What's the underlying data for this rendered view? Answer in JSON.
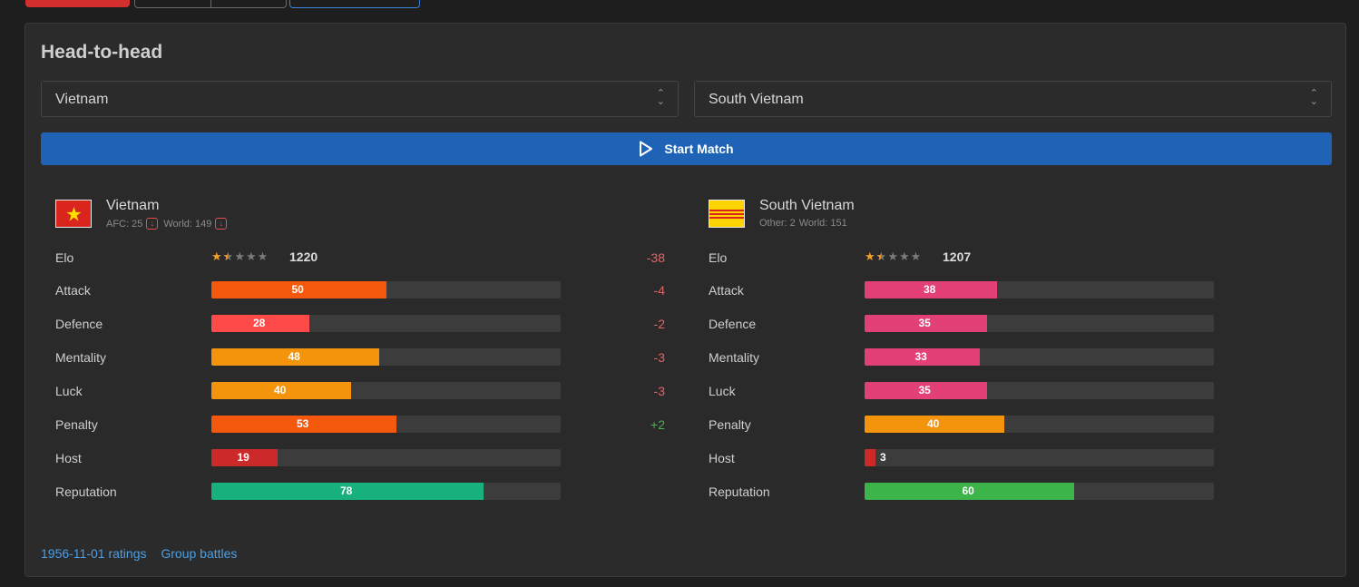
{
  "section_title": "Head-to-head",
  "select_left": {
    "value": "Vietnam"
  },
  "select_right": {
    "value": "South Vietnam"
  },
  "start_button": {
    "label": "Start Match"
  },
  "teams": [
    {
      "name": "Vietnam",
      "flag": "vietnam-flag",
      "sub_a": "AFC: 25",
      "sub_b": "World: 149",
      "elo": {
        "label": "Elo",
        "value": "1220",
        "delta": "-38",
        "stars": 1.5
      },
      "stats": [
        {
          "label": "Attack",
          "value": 50,
          "color": "#f4580c",
          "delta": "-4",
          "sign": "neg"
        },
        {
          "label": "Defence",
          "value": 28,
          "color": "#ff4a4a",
          "delta": "-2",
          "sign": "neg"
        },
        {
          "label": "Mentality",
          "value": 48,
          "color": "#f4940c",
          "delta": "-3",
          "sign": "neg"
        },
        {
          "label": "Luck",
          "value": 40,
          "color": "#f4940c",
          "delta": "-3",
          "sign": "neg"
        },
        {
          "label": "Penalty",
          "value": 53,
          "color": "#f4580c",
          "delta": "+2",
          "sign": "pos"
        },
        {
          "label": "Host",
          "value": 19,
          "color": "#cc2a2a",
          "delta": "",
          "sign": ""
        },
        {
          "label": "Reputation",
          "value": 78,
          "color": "#18b07c",
          "delta": "",
          "sign": ""
        }
      ]
    },
    {
      "name": "South Vietnam",
      "flag": "south-vietnam-flag",
      "sub_a": "Other: 2",
      "sub_b": "World: 151",
      "elo": {
        "label": "Elo",
        "value": "1207",
        "delta": "",
        "stars": 1.5
      },
      "stats": [
        {
          "label": "Attack",
          "value": 38,
          "color": "#e24076",
          "delta": "",
          "sign": ""
        },
        {
          "label": "Defence",
          "value": 35,
          "color": "#e24076",
          "delta": "",
          "sign": ""
        },
        {
          "label": "Mentality",
          "value": 33,
          "color": "#e24076",
          "delta": "",
          "sign": ""
        },
        {
          "label": "Luck",
          "value": 35,
          "color": "#e24076",
          "delta": "",
          "sign": ""
        },
        {
          "label": "Penalty",
          "value": 40,
          "color": "#f4940c",
          "delta": "",
          "sign": ""
        },
        {
          "label": "Host",
          "value": 3,
          "color": "#cc2a2a",
          "delta": "",
          "sign": ""
        },
        {
          "label": "Reputation",
          "value": 60,
          "color": "#3cb44a",
          "delta": "",
          "sign": ""
        }
      ]
    }
  ],
  "footer": {
    "link_ratings": "1956-11-01 ratings",
    "link_group": "Group battles"
  }
}
